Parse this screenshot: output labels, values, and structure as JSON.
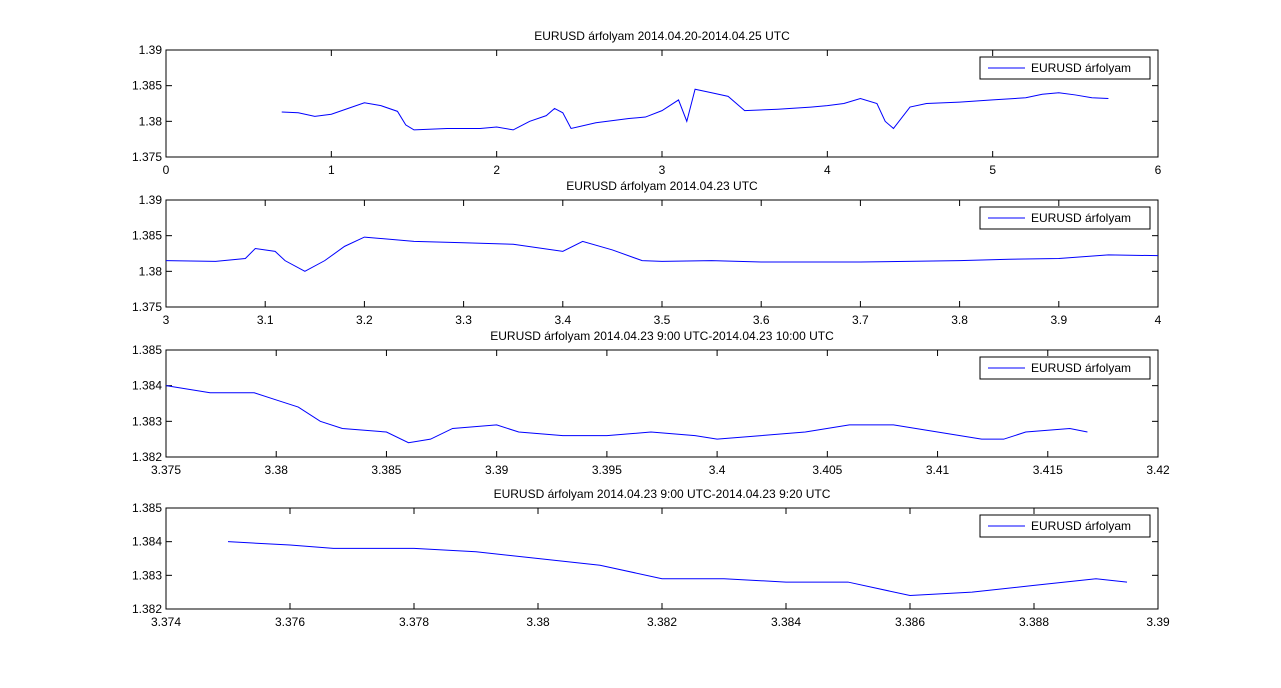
{
  "chart_data": [
    {
      "type": "line",
      "title": "EURUSD árfolyam 2014.04.20-2014.04.25 UTC",
      "x": [
        0.7,
        0.8,
        0.9,
        1.0,
        1.1,
        1.2,
        1.3,
        1.4,
        1.45,
        1.5,
        1.7,
        1.9,
        2.0,
        2.1,
        2.2,
        2.3,
        2.35,
        2.4,
        2.45,
        2.6,
        2.8,
        2.9,
        3.0,
        3.1,
        3.15,
        3.2,
        3.3,
        3.4,
        3.5,
        3.7,
        3.9,
        4.0,
        4.1,
        4.2,
        4.3,
        4.35,
        4.4,
        4.5,
        4.6,
        4.8,
        5.0,
        5.2,
        5.3,
        5.4,
        5.5,
        5.6,
        5.7
      ],
      "series": [
        {
          "name": "EURUSD árfolyam",
          "color": "#0000ff",
          "values": [
            1.3813,
            1.3812,
            1.3807,
            1.381,
            1.3818,
            1.3826,
            1.3822,
            1.3814,
            1.3795,
            1.3788,
            1.379,
            1.379,
            1.3792,
            1.3788,
            1.38,
            1.3808,
            1.3818,
            1.3812,
            1.379,
            1.3798,
            1.3804,
            1.3806,
            1.3815,
            1.383,
            1.38,
            1.3845,
            1.384,
            1.3835,
            1.3815,
            1.3817,
            1.382,
            1.3822,
            1.3825,
            1.3832,
            1.3825,
            1.38,
            1.379,
            1.382,
            1.3825,
            1.3827,
            1.383,
            1.3833,
            1.3838,
            1.384,
            1.3837,
            1.3833,
            1.3832
          ]
        }
      ],
      "xlim": [
        0,
        6
      ],
      "ylim": [
        1.375,
        1.39
      ],
      "xticks": [
        0,
        1,
        2,
        3,
        4,
        5,
        6
      ],
      "yticks": [
        1.375,
        1.38,
        1.385,
        1.39
      ],
      "legend": "upper right"
    },
    {
      "type": "line",
      "title": "EURUSD árfolyam 2014.04.23 UTC",
      "x": [
        3.0,
        3.05,
        3.08,
        3.09,
        3.11,
        3.12,
        3.14,
        3.16,
        3.18,
        3.2,
        3.25,
        3.3,
        3.35,
        3.4,
        3.42,
        3.45,
        3.48,
        3.5,
        3.55,
        3.6,
        3.7,
        3.8,
        3.85,
        3.9,
        3.95,
        4.0
      ],
      "series": [
        {
          "name": "EURUSD árfolyam",
          "color": "#0000ff",
          "values": [
            1.3815,
            1.3814,
            1.3818,
            1.3832,
            1.3828,
            1.3815,
            1.38,
            1.3815,
            1.3835,
            1.3848,
            1.3842,
            1.384,
            1.3838,
            1.3828,
            1.3842,
            1.383,
            1.3815,
            1.3814,
            1.3815,
            1.3813,
            1.3813,
            1.3815,
            1.3817,
            1.3818,
            1.3823,
            1.3822
          ]
        }
      ],
      "xlim": [
        3,
        4
      ],
      "ylim": [
        1.375,
        1.39
      ],
      "xticks": [
        3,
        3.1,
        3.2,
        3.3,
        3.4,
        3.5,
        3.6,
        3.7,
        3.8,
        3.9,
        4
      ],
      "yticks": [
        1.375,
        1.38,
        1.385,
        1.39
      ],
      "legend": "upper right"
    },
    {
      "type": "line",
      "title": "EURUSD árfolyam 2014.04.23 9:00 UTC-2014.04.23 10:00 UTC",
      "x": [
        3.375,
        3.377,
        3.379,
        3.38,
        3.381,
        3.382,
        3.383,
        3.385,
        3.386,
        3.387,
        3.388,
        3.39,
        3.391,
        3.393,
        3.395,
        3.397,
        3.399,
        3.4,
        3.402,
        3.404,
        3.406,
        3.408,
        3.41,
        3.412,
        3.413,
        3.414,
        3.416,
        3.4168
      ],
      "series": [
        {
          "name": "EURUSD árfolyam",
          "color": "#0000ff",
          "values": [
            1.384,
            1.3838,
            1.3838,
            1.3836,
            1.3834,
            1.383,
            1.3828,
            1.3827,
            1.3824,
            1.3825,
            1.3828,
            1.3829,
            1.3827,
            1.3826,
            1.3826,
            1.3827,
            1.3826,
            1.3825,
            1.3826,
            1.3827,
            1.3829,
            1.3829,
            1.3827,
            1.3825,
            1.3825,
            1.3827,
            1.3828,
            1.3827
          ]
        }
      ],
      "xlim": [
        3.375,
        3.42
      ],
      "ylim": [
        1.382,
        1.385
      ],
      "xticks": [
        3.375,
        3.38,
        3.385,
        3.39,
        3.395,
        3.4,
        3.405,
        3.41,
        3.415,
        3.42
      ],
      "yticks": [
        1.382,
        1.383,
        1.384,
        1.385
      ],
      "legend": "upper right"
    },
    {
      "type": "line",
      "title": "EURUSD árfolyam 2014.04.23 9:00 UTC-2014.04.23 9:20 UTC",
      "x": [
        3.375,
        3.376,
        3.3767,
        3.378,
        3.379,
        3.38,
        3.381,
        3.382,
        3.383,
        3.384,
        3.385,
        3.386,
        3.387,
        3.388,
        3.389,
        3.3895
      ],
      "series": [
        {
          "name": "EURUSD árfolyam",
          "color": "#0000ff",
          "values": [
            1.384,
            1.3839,
            1.3838,
            1.3838,
            1.3837,
            1.3835,
            1.3833,
            1.3829,
            1.3829,
            1.3828,
            1.3828,
            1.3824,
            1.3825,
            1.3827,
            1.3829,
            1.3828
          ]
        }
      ],
      "xlim": [
        3.374,
        3.39
      ],
      "ylim": [
        1.382,
        1.385
      ],
      "xticks": [
        3.374,
        3.376,
        3.378,
        3.38,
        3.382,
        3.384,
        3.386,
        3.388,
        3.39
      ],
      "yticks": [
        1.382,
        1.383,
        1.384,
        1.385
      ],
      "legend": "upper right"
    }
  ]
}
